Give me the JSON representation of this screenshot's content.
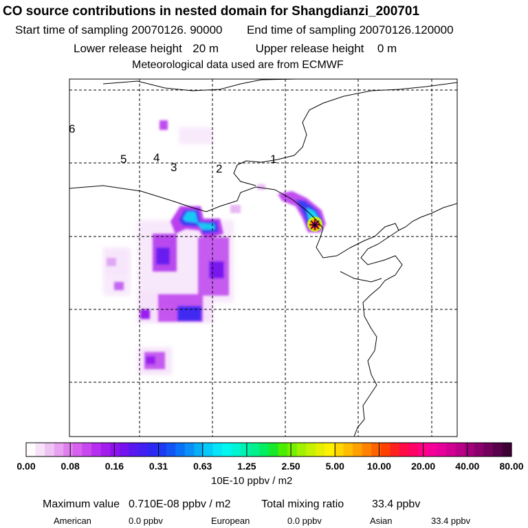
{
  "header": {
    "title": "CO  source contributions in nested domain for Shangdianzi_200701",
    "start_label": "Start time of sampling",
    "start_value": "20070126. 90000",
    "end_label": "End time of sampling",
    "end_value": "20070126.120000",
    "lower_label": "Lower release height",
    "lower_value": "20 m",
    "upper_label": "Upper release height",
    "upper_value": "0 m",
    "met_line": "Meteorological data used are from ECMWF"
  },
  "map": {
    "region_labels": [
      "6",
      "5",
      "4",
      "3",
      "2",
      "1"
    ],
    "receptor_marker": "star-marker"
  },
  "colorbar": {
    "tick_labels": [
      "0.00",
      "0.08",
      "0.16",
      "0.31",
      "0.63",
      "1.25",
      "2.50",
      "5.00",
      "10.00",
      "20.00",
      "40.00",
      "80.00"
    ],
    "unit": "10E-10 ppbv / m2",
    "colors": [
      "#fffbff",
      "#f7e2f9",
      "#f0c3f5",
      "#e9a2f1",
      "#e07fee",
      "#d661ee",
      "#c848ef",
      "#b62ff0",
      "#a31ded",
      "#8f12ee",
      "#7513ef",
      "#5a18f0",
      "#4320f2",
      "#2e29f2",
      "#1e38f3",
      "#1254f4",
      "#0a72f6",
      "#0a8ff6",
      "#07aef6",
      "#06caf7",
      "#06e4f7",
      "#00f6ee",
      "#00f4d3",
      "#00f2b0",
      "#00f08c",
      "#00ee60",
      "#19e82a",
      "#4ced00",
      "#76f000",
      "#a0f200",
      "#c5f200",
      "#e6ef00",
      "#fff000",
      "#ffd700",
      "#ffbc00",
      "#ffa000",
      "#ff8200",
      "#ff6200",
      "#ff4000",
      "#ff2020",
      "#ff0a46",
      "#ff0067",
      "#ff0088",
      "#f50099",
      "#e6009b",
      "#d10092",
      "#ba0088",
      "#a3007c",
      "#8c006e",
      "#72005d",
      "#58004a",
      "#400035"
    ]
  },
  "summary": {
    "max_label": "Maximum value",
    "max_value": "0.710E-08 ppbv / m2",
    "total_label": "Total mixing ratio",
    "total_value": "33.4 ppbv",
    "american_label": "American",
    "american_value": "0.0 ppbv",
    "european_label": "European",
    "european_value": "0.0 ppbv",
    "asian_label": "Asian",
    "asian_value": "33.4 ppbv"
  }
}
